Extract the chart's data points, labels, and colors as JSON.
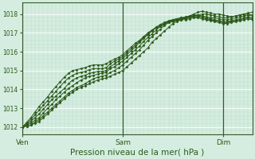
{
  "bg_color": "#d4ede0",
  "grid_major_color": "#ffffff",
  "grid_minor_color": "#bddccc",
  "line_color": "#2d5a1b",
  "marker_color": "#2d5a1b",
  "xlabel": "Pression niveau de la mer( hPa )",
  "xlabel_fontsize": 7.5,
  "tick_label_color": "#2d5a1b",
  "ylim": [
    1011.6,
    1018.6
  ],
  "yticks": [
    1012,
    1013,
    1014,
    1015,
    1016,
    1017,
    1018
  ],
  "day_labels": [
    "Ven",
    "Sam",
    "Dim"
  ],
  "day_positions": [
    0,
    24,
    48
  ],
  "xmax": 56,
  "series": [
    [
      1012.0,
      1012.05,
      1012.1,
      1012.2,
      1012.3,
      1012.5,
      1012.7,
      1012.9,
      1013.1,
      1013.3,
      1013.5,
      1013.7,
      1013.85,
      1014.0,
      1014.1,
      1014.2,
      1014.3,
      1014.4,
      1014.5,
      1014.55,
      1014.6,
      1014.7,
      1014.8,
      1014.9,
      1015.0,
      1015.2,
      1015.4,
      1015.6,
      1015.8,
      1016.0,
      1016.2,
      1016.5,
      1016.7,
      1016.9,
      1017.1,
      1017.3,
      1017.5,
      1017.6,
      1017.7,
      1017.8,
      1017.9,
      1018.0,
      1018.1,
      1018.15,
      1018.1,
      1018.05,
      1018.0,
      1018.0,
      1017.95,
      1017.9,
      1017.85,
      1017.9,
      1017.95,
      1018.0,
      1018.05,
      1018.1
    ],
    [
      1012.0,
      1012.05,
      1012.1,
      1012.25,
      1012.4,
      1012.6,
      1012.8,
      1013.0,
      1013.2,
      1013.4,
      1013.6,
      1013.8,
      1013.95,
      1014.1,
      1014.2,
      1014.3,
      1014.45,
      1014.55,
      1014.65,
      1014.7,
      1014.75,
      1014.9,
      1015.0,
      1015.15,
      1015.3,
      1015.5,
      1015.7,
      1015.9,
      1016.1,
      1016.35,
      1016.6,
      1016.8,
      1017.0,
      1017.2,
      1017.4,
      1017.55,
      1017.65,
      1017.7,
      1017.75,
      1017.8,
      1017.85,
      1017.9,
      1017.95,
      1018.0,
      1018.0,
      1017.95,
      1017.9,
      1017.85,
      1017.8,
      1017.8,
      1017.85,
      1017.9,
      1017.95,
      1018.0,
      1018.0,
      1017.95
    ],
    [
      1012.0,
      1012.1,
      1012.2,
      1012.35,
      1012.5,
      1012.75,
      1013.0,
      1013.2,
      1013.45,
      1013.65,
      1013.85,
      1014.05,
      1014.2,
      1014.35,
      1014.5,
      1014.6,
      1014.7,
      1014.75,
      1014.8,
      1014.85,
      1014.9,
      1015.1,
      1015.2,
      1015.35,
      1015.5,
      1015.7,
      1015.9,
      1016.1,
      1016.3,
      1016.55,
      1016.75,
      1016.95,
      1017.15,
      1017.35,
      1017.5,
      1017.6,
      1017.7,
      1017.75,
      1017.8,
      1017.85,
      1017.9,
      1017.95,
      1017.95,
      1017.9,
      1017.85,
      1017.8,
      1017.8,
      1017.75,
      1017.7,
      1017.7,
      1017.75,
      1017.8,
      1017.85,
      1017.9,
      1017.95,
      1017.9
    ],
    [
      1012.0,
      1012.15,
      1012.3,
      1012.5,
      1012.7,
      1012.95,
      1013.2,
      1013.45,
      1013.65,
      1013.85,
      1014.05,
      1014.3,
      1014.5,
      1014.6,
      1014.7,
      1014.75,
      1014.85,
      1014.9,
      1014.95,
      1014.95,
      1015.0,
      1015.2,
      1015.35,
      1015.5,
      1015.65,
      1015.85,
      1016.05,
      1016.25,
      1016.5,
      1016.7,
      1016.9,
      1017.1,
      1017.3,
      1017.45,
      1017.55,
      1017.65,
      1017.7,
      1017.75,
      1017.8,
      1017.8,
      1017.85,
      1017.9,
      1017.9,
      1017.85,
      1017.8,
      1017.75,
      1017.7,
      1017.65,
      1017.6,
      1017.6,
      1017.65,
      1017.7,
      1017.75,
      1017.8,
      1017.85,
      1017.8
    ],
    [
      1012.0,
      1012.2,
      1012.4,
      1012.65,
      1012.9,
      1013.15,
      1013.4,
      1013.65,
      1013.9,
      1014.15,
      1014.4,
      1014.6,
      1014.75,
      1014.85,
      1014.9,
      1014.95,
      1015.05,
      1015.1,
      1015.1,
      1015.1,
      1015.15,
      1015.35,
      1015.5,
      1015.6,
      1015.75,
      1015.95,
      1016.15,
      1016.35,
      1016.55,
      1016.75,
      1016.95,
      1017.15,
      1017.3,
      1017.4,
      1017.5,
      1017.6,
      1017.65,
      1017.7,
      1017.75,
      1017.75,
      1017.8,
      1017.85,
      1017.85,
      1017.8,
      1017.75,
      1017.7,
      1017.65,
      1017.6,
      1017.55,
      1017.55,
      1017.6,
      1017.65,
      1017.7,
      1017.75,
      1017.8,
      1017.75
    ],
    [
      1012.0,
      1012.25,
      1012.5,
      1012.8,
      1013.1,
      1013.35,
      1013.6,
      1013.9,
      1014.15,
      1014.4,
      1014.65,
      1014.85,
      1015.0,
      1015.05,
      1015.1,
      1015.15,
      1015.25,
      1015.3,
      1015.3,
      1015.3,
      1015.35,
      1015.5,
      1015.6,
      1015.7,
      1015.85,
      1016.05,
      1016.25,
      1016.45,
      1016.6,
      1016.8,
      1017.0,
      1017.15,
      1017.25,
      1017.35,
      1017.45,
      1017.55,
      1017.6,
      1017.65,
      1017.7,
      1017.7,
      1017.75,
      1017.8,
      1017.8,
      1017.75,
      1017.7,
      1017.65,
      1017.6,
      1017.55,
      1017.5,
      1017.5,
      1017.55,
      1017.6,
      1017.65,
      1017.7,
      1017.75,
      1017.7
    ]
  ]
}
